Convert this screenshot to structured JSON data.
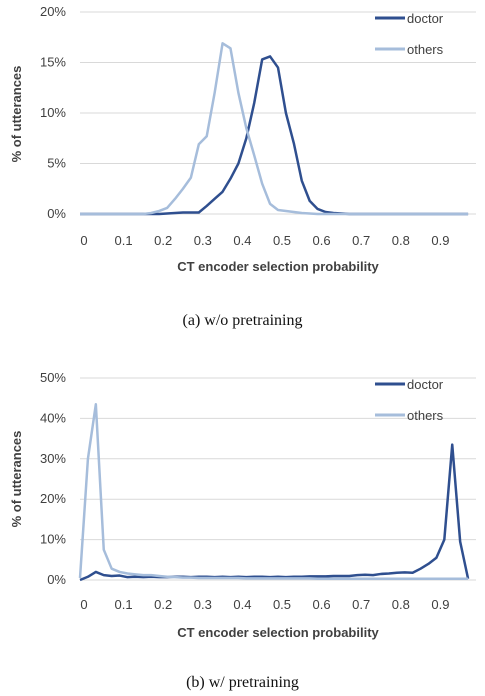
{
  "chart_data": [
    {
      "type": "line",
      "caption": "(a)  w/o pretraining",
      "xlabel": "CT encoder selection probability",
      "ylabel": "% of utterances",
      "ylim": [
        0,
        20
      ],
      "yticks": [
        "0%",
        "5%",
        "10%",
        "15%",
        "20%"
      ],
      "xticks": [
        "0",
        "0.1",
        "0.2",
        "0.3",
        "0.4",
        "0.5",
        "0.6",
        "0.7",
        "0.8",
        "0.9"
      ],
      "x": [
        0.0,
        0.02,
        0.04,
        0.06,
        0.08,
        0.1,
        0.12,
        0.14,
        0.16,
        0.18,
        0.2,
        0.22,
        0.24,
        0.26,
        0.28,
        0.3,
        0.32,
        0.34,
        0.36,
        0.38,
        0.4,
        0.42,
        0.44,
        0.46,
        0.48,
        0.5,
        0.52,
        0.54,
        0.56,
        0.58,
        0.6,
        0.62,
        0.64,
        0.66,
        0.68,
        0.7,
        0.72,
        0.74,
        0.76,
        0.78,
        0.8,
        0.82,
        0.84,
        0.86,
        0.88,
        0.9,
        0.92,
        0.94,
        0.96,
        0.98
      ],
      "series": [
        {
          "name": "doctor",
          "color": "#2f4f8f",
          "values": [
            0,
            0,
            0,
            0,
            0,
            0,
            0,
            0,
            0,
            0,
            0,
            0.05,
            0.1,
            0.15,
            0.15,
            0.15,
            0.8,
            1.5,
            2.2,
            3.5,
            5.0,
            7.5,
            11.0,
            15.3,
            15.6,
            14.5,
            10.0,
            7.0,
            3.3,
            1.3,
            0.5,
            0.2,
            0.1,
            0.05,
            0,
            0,
            0,
            0,
            0,
            0,
            0,
            0,
            0,
            0,
            0,
            0,
            0,
            0,
            0,
            0
          ]
        },
        {
          "name": "others",
          "color": "#a6bddb",
          "values": [
            0,
            0,
            0,
            0,
            0,
            0,
            0,
            0,
            0,
            0.1,
            0.3,
            0.6,
            1.5,
            2.5,
            3.6,
            6.9,
            7.7,
            12.0,
            16.9,
            16.4,
            12.0,
            8.5,
            5.8,
            3.0,
            1.0,
            0.4,
            0.3,
            0.2,
            0.1,
            0.05,
            0,
            0,
            0,
            0,
            0,
            0,
            0,
            0,
            0,
            0,
            0,
            0,
            0,
            0,
            0,
            0,
            0,
            0,
            0,
            0
          ]
        }
      ]
    },
    {
      "type": "line",
      "caption": "(b)  w/ pretraining",
      "xlabel": "CT encoder selection probability",
      "ylabel": "% of utterances",
      "ylim": [
        0,
        50
      ],
      "yticks": [
        "0%",
        "10%",
        "20%",
        "30%",
        "40%",
        "50%"
      ],
      "xticks": [
        "0",
        "0.1",
        "0.2",
        "0.3",
        "0.4",
        "0.5",
        "0.6",
        "0.7",
        "0.8",
        "0.9"
      ],
      "x": [
        0.0,
        0.02,
        0.04,
        0.06,
        0.08,
        0.1,
        0.12,
        0.14,
        0.16,
        0.18,
        0.2,
        0.22,
        0.24,
        0.26,
        0.28,
        0.3,
        0.32,
        0.34,
        0.36,
        0.38,
        0.4,
        0.42,
        0.44,
        0.46,
        0.48,
        0.5,
        0.52,
        0.54,
        0.56,
        0.58,
        0.6,
        0.62,
        0.64,
        0.66,
        0.68,
        0.7,
        0.72,
        0.74,
        0.76,
        0.78,
        0.8,
        0.82,
        0.84,
        0.86,
        0.88,
        0.9,
        0.92,
        0.94,
        0.96,
        0.98
      ],
      "series": [
        {
          "name": "doctor",
          "color": "#2f4f8f",
          "values": [
            0,
            0.8,
            2.0,
            1.2,
            1.0,
            1.1,
            0.7,
            0.8,
            0.7,
            0.8,
            0.7,
            0.7,
            0.8,
            0.8,
            0.7,
            0.8,
            0.8,
            0.7,
            0.8,
            0.7,
            0.8,
            0.7,
            0.8,
            0.8,
            0.7,
            0.8,
            0.7,
            0.8,
            0.8,
            0.9,
            0.9,
            0.9,
            1.0,
            1.0,
            1.0,
            1.2,
            1.3,
            1.2,
            1.5,
            1.6,
            1.8,
            1.9,
            1.8,
            2.8,
            4.0,
            5.5,
            10.0,
            33.5,
            9.5,
            0.3
          ]
        },
        {
          "name": "others",
          "color": "#a6bddb",
          "values": [
            0.5,
            30.0,
            43.5,
            7.5,
            2.8,
            2.0,
            1.6,
            1.4,
            1.2,
            1.2,
            1.0,
            0.8,
            0.7,
            0.6,
            0.6,
            0.5,
            0.5,
            0.5,
            0.5,
            0.5,
            0.5,
            0.4,
            0.4,
            0.4,
            0.4,
            0.4,
            0.4,
            0.4,
            0.4,
            0.4,
            0.3,
            0.3,
            0.3,
            0.3,
            0.3,
            0.3,
            0.3,
            0.3,
            0.3,
            0.3,
            0.3,
            0.3,
            0.3,
            0.3,
            0.3,
            0.3,
            0.3,
            0.3,
            0.3,
            0.3
          ]
        }
      ]
    }
  ]
}
